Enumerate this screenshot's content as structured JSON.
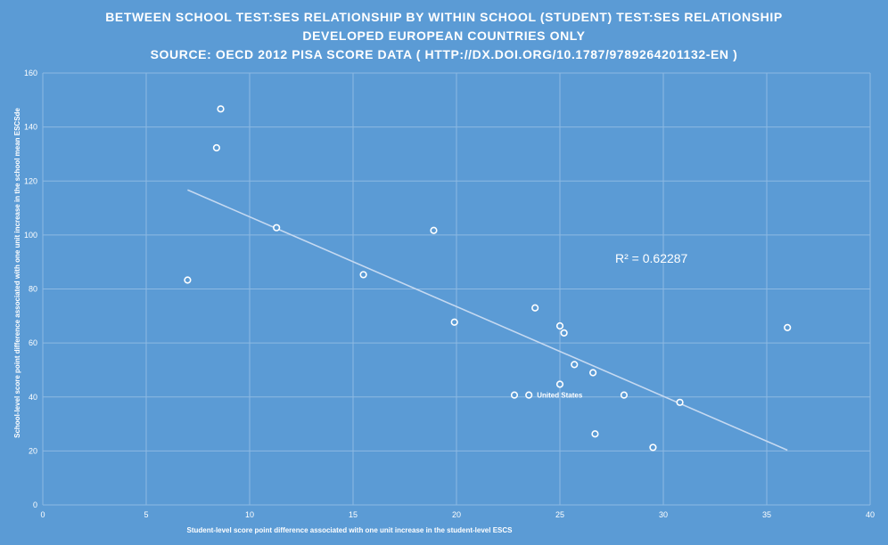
{
  "chart_data": {
    "type": "scatter",
    "title_lines": [
      "BETWEEN SCHOOL TEST:SES RELATIONSHIP  BY WITHIN SCHOOL (STUDENT) TEST:SES RELATIONSHIP",
      "DEVELOPED EUROPEAN COUNTRIES ONLY",
      "SOURCE: OECD 2012 PISA SCORE DATA ( HTTP://DX.DOI.ORG/10.1787/9789264201132-EN )"
    ],
    "xlabel": "Student-level score point difference associated with one unit increase in the student-level ESCS",
    "ylabel": "School-level score point difference associated with one unit increase in the school mean ESCSde",
    "xlim": [
      0,
      40
    ],
    "ylim": [
      0,
      160
    ],
    "xticks": [
      0,
      5,
      10,
      15,
      20,
      25,
      30,
      35,
      40
    ],
    "yticks": [
      0,
      20,
      40,
      60,
      80,
      100,
      120,
      140,
      160
    ],
    "grid": true,
    "points": [
      {
        "x": 7.0,
        "y": 83.3
      },
      {
        "x": 8.4,
        "y": 132.3
      },
      {
        "x": 8.6,
        "y": 146.7
      },
      {
        "x": 11.3,
        "y": 102.7
      },
      {
        "x": 15.5,
        "y": 85.3
      },
      {
        "x": 18.9,
        "y": 101.7
      },
      {
        "x": 19.9,
        "y": 67.7
      },
      {
        "x": 22.8,
        "y": 40.7
      },
      {
        "x": 23.5,
        "y": 40.7
      },
      {
        "x": 23.8,
        "y": 73.0
      },
      {
        "x": 25.0,
        "y": 66.3
      },
      {
        "x": 25.0,
        "y": 44.7
      },
      {
        "x": 25.2,
        "y": 63.7
      },
      {
        "x": 25.7,
        "y": 52.0
      },
      {
        "x": 26.6,
        "y": 49.0
      },
      {
        "x": 26.7,
        "y": 26.3
      },
      {
        "x": 28.1,
        "y": 40.7
      },
      {
        "x": 29.5,
        "y": 21.3
      },
      {
        "x": 30.8,
        "y": 38.0
      },
      {
        "x": 36.0,
        "y": 65.7
      }
    ],
    "point_labels": [
      {
        "x": 23.5,
        "y": 40.7,
        "text": "United States"
      }
    ],
    "trendline": {
      "type": "linear",
      "x_start": 7.0,
      "y_start": 116.7,
      "x_end": 36.0,
      "y_end": 20.3,
      "r2_label": "R² = 0.62287"
    },
    "colors": {
      "background": "#5b9bd5",
      "marker_fill": "#5b9bd5",
      "marker_stroke": "#ffffff",
      "trendline": "#c5d9f1",
      "gridline": "#8db9e2",
      "text": "#ffffff"
    }
  }
}
